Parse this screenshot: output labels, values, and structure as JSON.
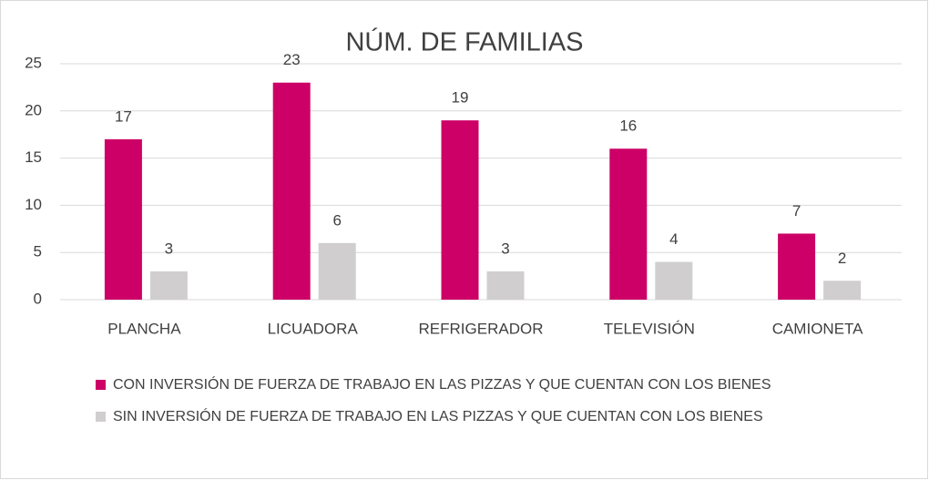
{
  "chart_data": {
    "type": "bar",
    "title": "NÚM. DE FAMILIAS",
    "categories": [
      "PLANCHA",
      "LICUADORA",
      "REFRIGERADOR",
      "TELEVISIÓN",
      "CAMIONETA"
    ],
    "series": [
      {
        "name": "CON INVERSIÓN DE FUERZA DE TRABAJO EN LAS PIZZAS Y QUE CUENTAN CON LOS BIENES",
        "color": "#cc0066",
        "values": [
          17,
          23,
          19,
          16,
          7
        ]
      },
      {
        "name": "SIN INVERSIÓN DE FUERZA DE TRABAJO EN LAS PIZZAS Y QUE CUENTAN CON LOS BIENES",
        "color": "#d0cece",
        "values": [
          3,
          6,
          3,
          4,
          2
        ]
      }
    ],
    "ylim": [
      0,
      25
    ],
    "yticks": [
      0,
      5,
      10,
      15,
      20,
      25
    ],
    "grid": true,
    "legend": "bottom"
  }
}
